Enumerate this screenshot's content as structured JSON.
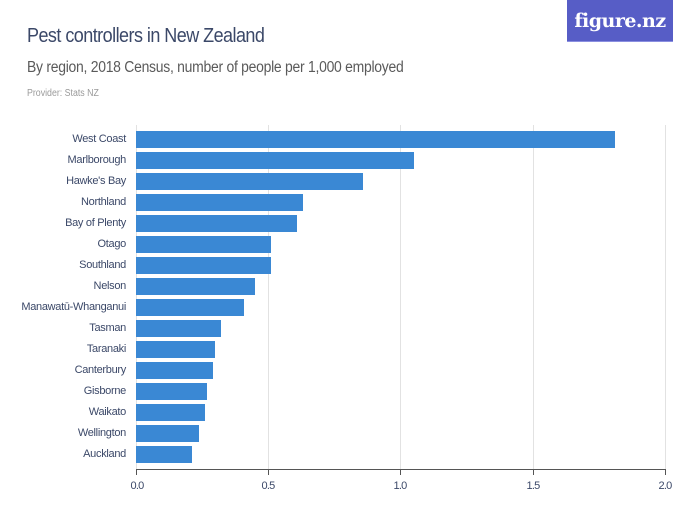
{
  "header": {
    "title": "Pest controllers in New Zealand",
    "subtitle": "By region, 2018 Census, number of people per 1,000 employed",
    "provider": "Provider: Stats NZ"
  },
  "logo": {
    "text": "figure.nz",
    "color": "#575dc6"
  },
  "colors": {
    "bar": "#3a88d4",
    "title": "#3b4868",
    "gridline": "#e2e2e2"
  },
  "chart_data": {
    "type": "bar",
    "orientation": "horizontal",
    "title": "Pest controllers in New Zealand",
    "subtitle": "By region, 2018 Census, number of people per 1,000 employed",
    "xlabel": "",
    "ylabel": "",
    "xlim": [
      0,
      2.0
    ],
    "xticks": [
      "0.0",
      "0.5",
      "1.0",
      "1.5",
      "2.0"
    ],
    "grid": true,
    "categories": [
      "West Coast",
      "Marlborough",
      "Hawke's Bay",
      "Northland",
      "Bay of Plenty",
      "Otago",
      "Southland",
      "Nelson",
      "Manawatū-Whanganui",
      "Tasman",
      "Taranaki",
      "Canterbury",
      "Gisborne",
      "Waikato",
      "Wellington",
      "Auckland"
    ],
    "values": [
      1.81,
      1.05,
      0.86,
      0.63,
      0.61,
      0.51,
      0.51,
      0.45,
      0.41,
      0.32,
      0.3,
      0.29,
      0.27,
      0.26,
      0.24,
      0.21
    ]
  }
}
